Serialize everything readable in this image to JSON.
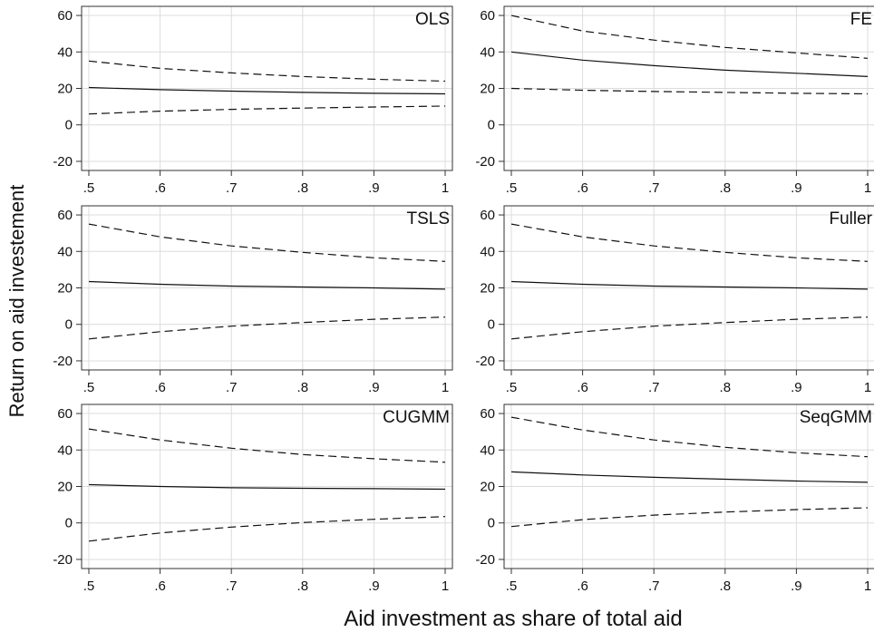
{
  "figure": {
    "ylabel": "Return on aid investement",
    "xlabel": "Aid investment as share of total aid"
  },
  "chart_data": [
    {
      "type": "line",
      "title": "OLS",
      "x": [
        0.5,
        0.6,
        0.7,
        0.8,
        0.9,
        1.0
      ],
      "xticks": [
        ".5",
        ".6",
        ".7",
        ".8",
        ".9",
        "1"
      ],
      "yticks": [
        "60",
        "40",
        "20",
        "0",
        "-20"
      ],
      "xlim": [
        0.5,
        1.0
      ],
      "ylim": [
        -25,
        65
      ],
      "grid": true,
      "series": [
        {
          "values": [
            35,
            31,
            28.5,
            26.5,
            25,
            24
          ],
          "style": "dashed"
        },
        {
          "values": [
            20.5,
            19.3,
            18.5,
            17.8,
            17.3,
            17
          ],
          "style": "solid"
        },
        {
          "values": [
            6,
            7.5,
            8.5,
            9.2,
            9.8,
            10.3
          ],
          "style": "dashed"
        }
      ]
    },
    {
      "type": "line",
      "title": "FE",
      "x": [
        0.5,
        0.6,
        0.7,
        0.8,
        0.9,
        1.0
      ],
      "xticks": [
        ".5",
        ".6",
        ".7",
        ".8",
        ".9",
        "1"
      ],
      "yticks": [
        "60",
        "40",
        "20",
        "0",
        "-20"
      ],
      "xlim": [
        0.5,
        1.0
      ],
      "ylim": [
        -25,
        65
      ],
      "grid": true,
      "series": [
        {
          "values": [
            60,
            51.5,
            46.5,
            42.5,
            39.5,
            36.5
          ],
          "style": "dashed"
        },
        {
          "values": [
            40,
            35.5,
            32.5,
            30,
            28.3,
            26.5
          ],
          "style": "solid"
        },
        {
          "values": [
            20,
            19,
            18.3,
            17.8,
            17.3,
            17
          ],
          "style": "dashed"
        }
      ]
    },
    {
      "type": "line",
      "title": "TSLS",
      "x": [
        0.5,
        0.6,
        0.7,
        0.8,
        0.9,
        1.0
      ],
      "xticks": [
        ".5",
        ".6",
        ".7",
        ".8",
        ".9",
        "1"
      ],
      "yticks": [
        "60",
        "40",
        "20",
        "0",
        "-20"
      ],
      "xlim": [
        0.5,
        1.0
      ],
      "ylim": [
        -25,
        65
      ],
      "grid": true,
      "series": [
        {
          "values": [
            55,
            48,
            43,
            39.5,
            36.5,
            34.5
          ],
          "style": "dashed"
        },
        {
          "values": [
            23.5,
            22,
            21,
            20.5,
            20,
            19.3
          ],
          "style": "solid"
        },
        {
          "values": [
            -8,
            -4,
            -1,
            1,
            2.8,
            4
          ],
          "style": "dashed"
        }
      ]
    },
    {
      "type": "line",
      "title": "Fuller",
      "x": [
        0.5,
        0.6,
        0.7,
        0.8,
        0.9,
        1.0
      ],
      "xticks": [
        ".5",
        ".6",
        ".7",
        ".8",
        ".9",
        "1"
      ],
      "yticks": [
        "60",
        "40",
        "20",
        "0",
        "-20"
      ],
      "xlim": [
        0.5,
        1.0
      ],
      "ylim": [
        -25,
        65
      ],
      "grid": true,
      "series": [
        {
          "values": [
            55,
            48,
            43,
            39.5,
            36.5,
            34.5
          ],
          "style": "dashed"
        },
        {
          "values": [
            23.5,
            22,
            21,
            20.5,
            20,
            19.3
          ],
          "style": "solid"
        },
        {
          "values": [
            -8,
            -4,
            -1,
            1,
            2.8,
            4
          ],
          "style": "dashed"
        }
      ]
    },
    {
      "type": "line",
      "title": "CUGMM",
      "x": [
        0.5,
        0.6,
        0.7,
        0.8,
        0.9,
        1.0
      ],
      "xticks": [
        ".5",
        ".6",
        ".7",
        ".8",
        ".9",
        "1"
      ],
      "yticks": [
        "60",
        "40",
        "20",
        "0",
        "-20"
      ],
      "xlim": [
        0.5,
        1.0
      ],
      "ylim": [
        -25,
        65
      ],
      "grid": true,
      "series": [
        {
          "values": [
            51.5,
            45.5,
            41,
            37.5,
            35.2,
            33.3
          ],
          "style": "dashed"
        },
        {
          "values": [
            21,
            20,
            19.3,
            19,
            18.8,
            18.5
          ],
          "style": "solid"
        },
        {
          "values": [
            -10,
            -5.5,
            -2.3,
            0.2,
            2,
            3.5
          ],
          "style": "dashed"
        }
      ]
    },
    {
      "type": "line",
      "title": "SeqGMM",
      "x": [
        0.5,
        0.6,
        0.7,
        0.8,
        0.9,
        1.0
      ],
      "xticks": [
        ".5",
        ".6",
        ".7",
        ".8",
        ".9",
        "1"
      ],
      "yticks": [
        "60",
        "40",
        "20",
        "0",
        "-20"
      ],
      "xlim": [
        0.5,
        1.0
      ],
      "ylim": [
        -25,
        65
      ],
      "grid": true,
      "series": [
        {
          "values": [
            58,
            51,
            45.5,
            41.5,
            38.5,
            36.3
          ],
          "style": "dashed"
        },
        {
          "values": [
            28,
            26.3,
            25,
            24,
            23,
            22.3
          ],
          "style": "solid"
        },
        {
          "values": [
            -2,
            1.8,
            4.3,
            6,
            7.3,
            8.3
          ],
          "style": "dashed"
        }
      ]
    }
  ]
}
